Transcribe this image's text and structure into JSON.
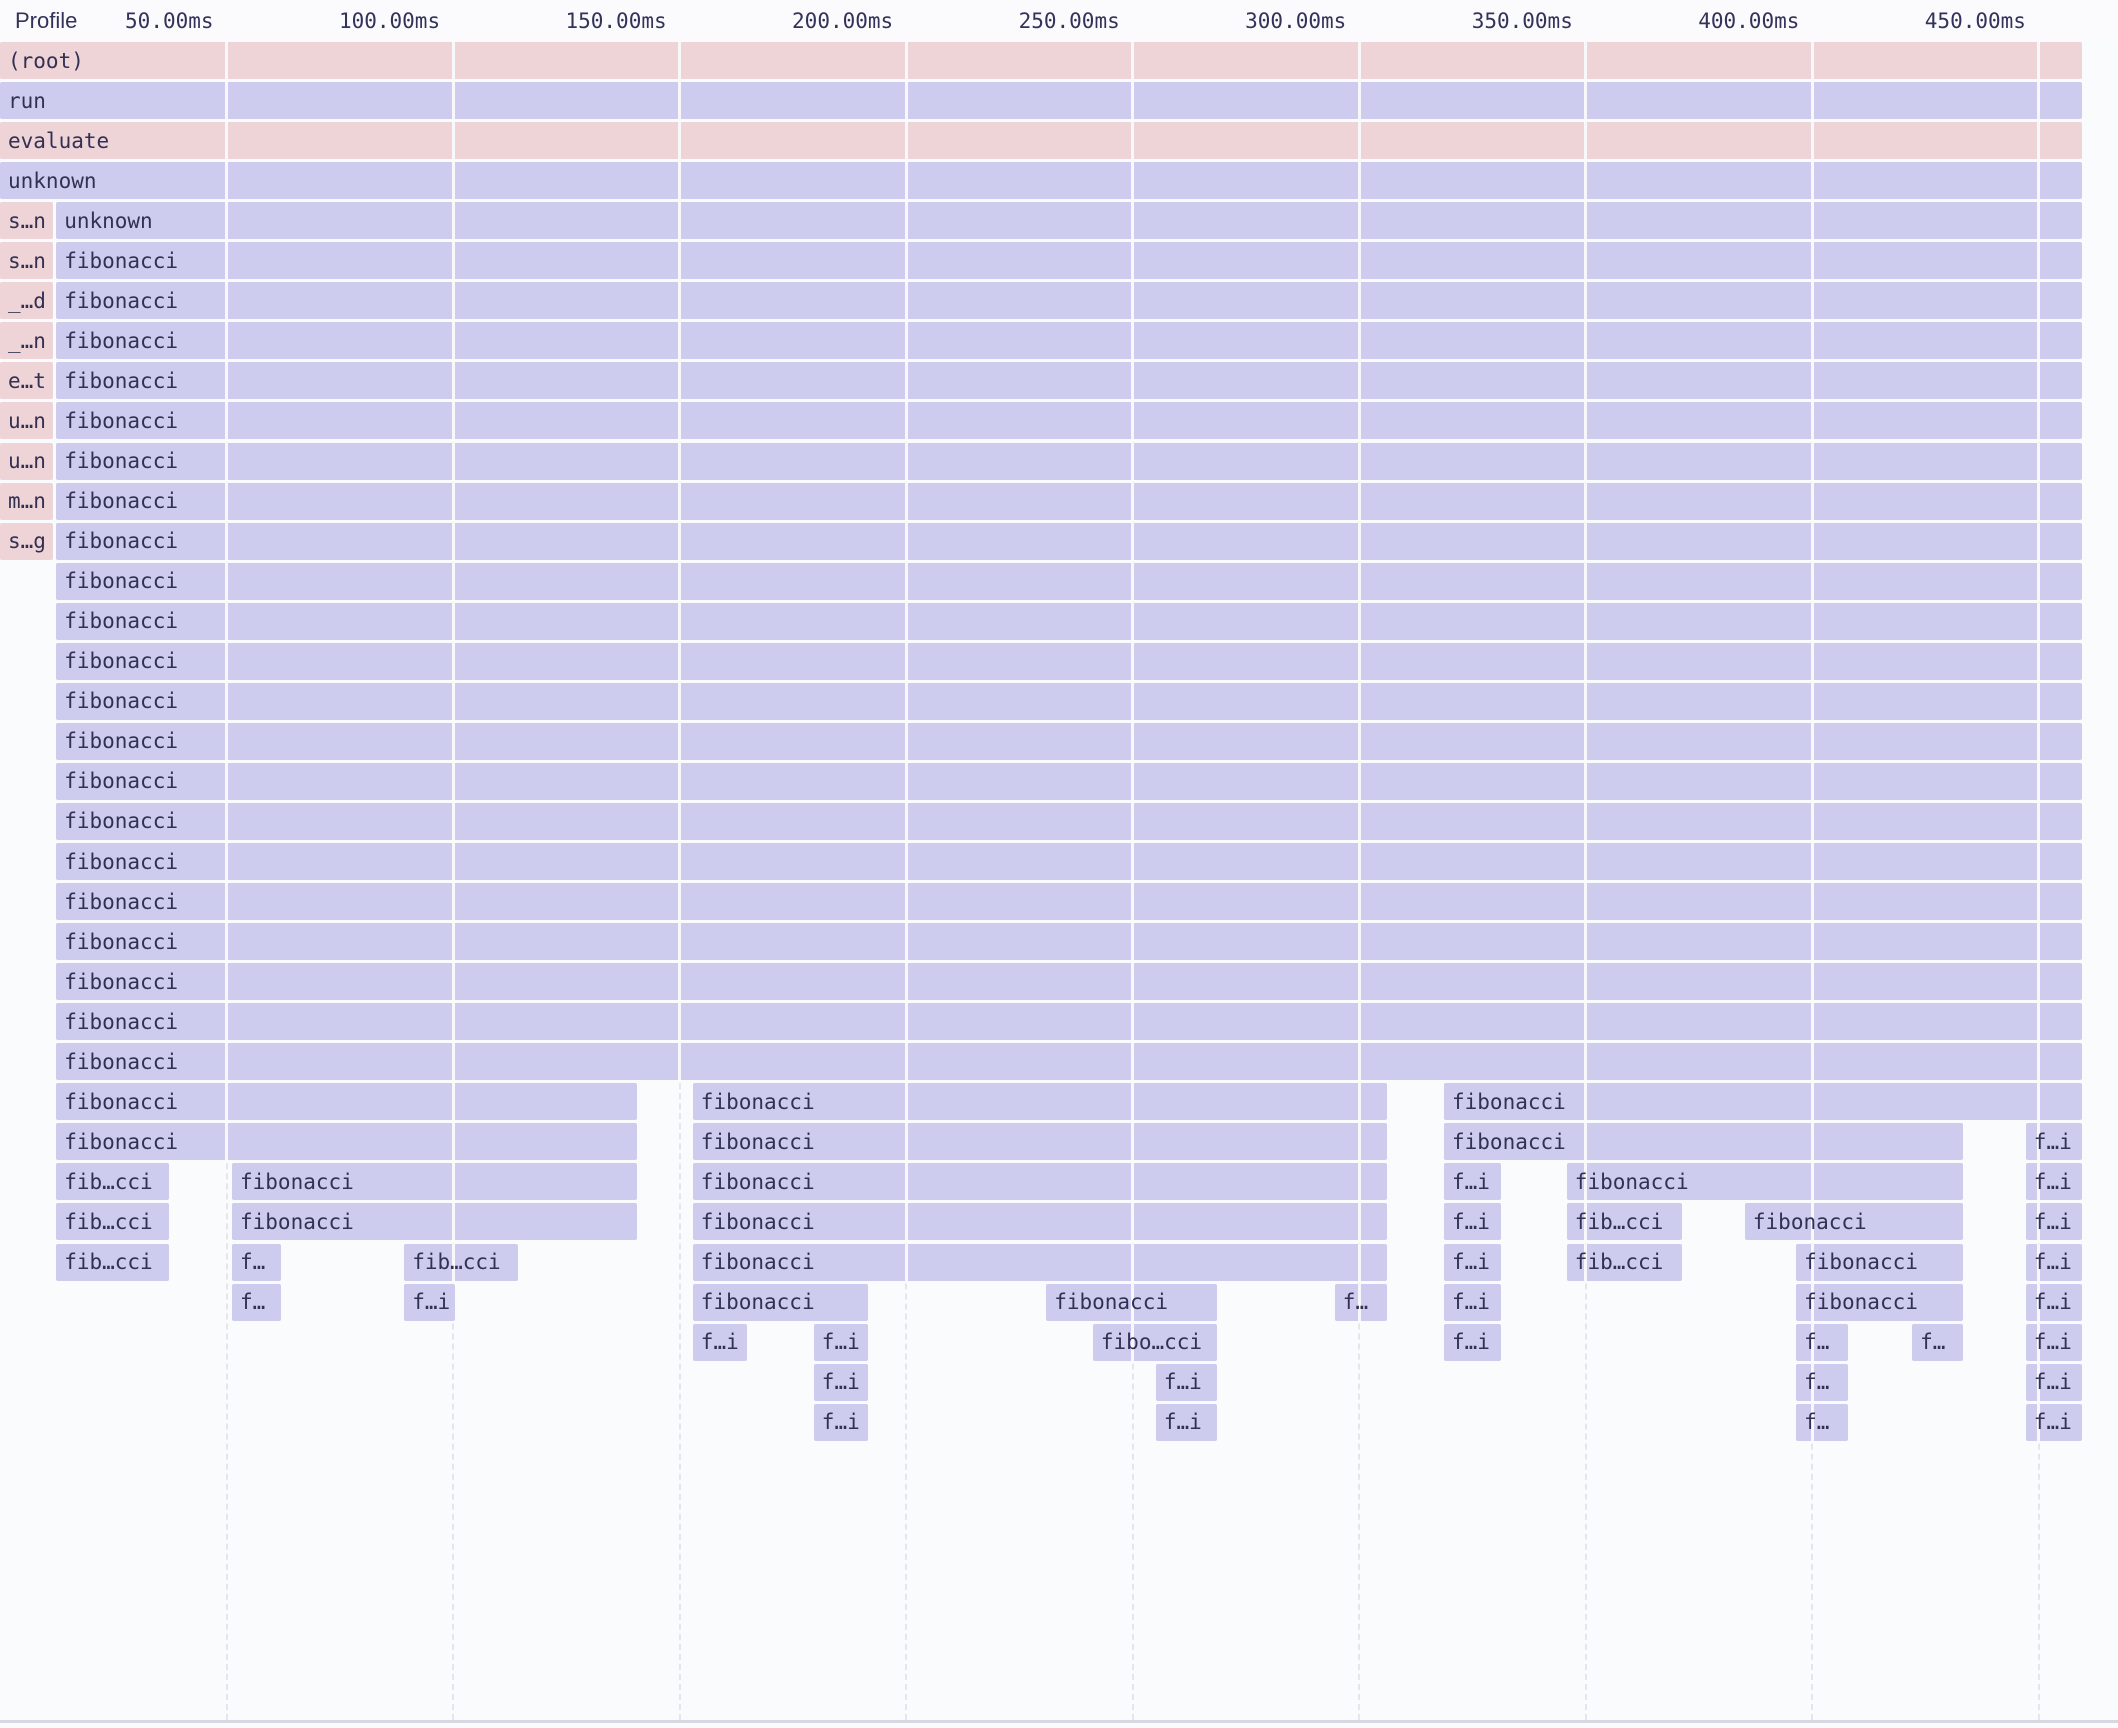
{
  "header": {
    "profile_label": "Profile",
    "axis": {
      "unit": "ms",
      "ticks": [
        {
          "ms": 50,
          "label": "50.00ms"
        },
        {
          "ms": 100,
          "label": "100.00ms"
        },
        {
          "ms": 150,
          "label": "150.00ms"
        },
        {
          "ms": 200,
          "label": "200.00ms"
        },
        {
          "ms": 250,
          "label": "250.00ms"
        },
        {
          "ms": 300,
          "label": "300.00ms"
        },
        {
          "ms": 350,
          "label": "350.00ms"
        },
        {
          "ms": 400,
          "label": "400.00ms"
        },
        {
          "ms": 450,
          "label": "450.00ms"
        }
      ]
    }
  },
  "colors": {
    "background": "#fafbfc",
    "system_frame": "#eed3d7",
    "js_frame": "#cdccee",
    "frame_text": "#323153",
    "header_text": "#33325a",
    "grid_dashed": "#e7e5ec",
    "grid_over_frame": "#f8f8fb",
    "divider": "#d9d5e1"
  },
  "flame_chart": {
    "unit": "ms",
    "total_ms": 459.5,
    "rows": [
      {
        "depth": 0,
        "blocks": [
          {
            "label": "(root)",
            "kind": "system",
            "t0": 0,
            "t1": 459.5
          }
        ]
      },
      {
        "depth": 1,
        "blocks": [
          {
            "label": "run",
            "kind": "js",
            "t0": 0,
            "t1": 459.5
          }
        ]
      },
      {
        "depth": 2,
        "blocks": [
          {
            "label": "evaluate",
            "kind": "system",
            "t0": 0,
            "t1": 459.5
          }
        ]
      },
      {
        "depth": 3,
        "blocks": [
          {
            "label": "unknown",
            "kind": "js",
            "t0": 0,
            "t1": 459.5
          }
        ]
      },
      {
        "depth": 4,
        "blocks": [
          {
            "label": "s…n",
            "kind": "system",
            "t0": 0,
            "t1": 11.7
          },
          {
            "label": "unknown",
            "kind": "js",
            "t0": 12.4,
            "t1": 459.5
          }
        ]
      },
      {
        "depth": 5,
        "blocks": [
          {
            "label": "s…n",
            "kind": "system",
            "t0": 0,
            "t1": 11.7
          },
          {
            "label": "fibonacci",
            "kind": "js",
            "t0": 12.4,
            "t1": 459.5
          }
        ]
      },
      {
        "depth": 6,
        "blocks": [
          {
            "label": "_…d",
            "kind": "system",
            "t0": 0,
            "t1": 11.7
          },
          {
            "label": "fibonacci",
            "kind": "js",
            "t0": 12.4,
            "t1": 459.5
          }
        ]
      },
      {
        "depth": 7,
        "blocks": [
          {
            "label": "_…n",
            "kind": "system",
            "t0": 0,
            "t1": 11.7
          },
          {
            "label": "fibonacci",
            "kind": "js",
            "t0": 12.4,
            "t1": 459.5
          }
        ]
      },
      {
        "depth": 8,
        "blocks": [
          {
            "label": "e…t",
            "kind": "system",
            "t0": 0,
            "t1": 11.7
          },
          {
            "label": "fibonacci",
            "kind": "js",
            "t0": 12.4,
            "t1": 459.5
          }
        ]
      },
      {
        "depth": 9,
        "blocks": [
          {
            "label": "u…n",
            "kind": "system",
            "t0": 0,
            "t1": 11.7
          },
          {
            "label": "fibonacci",
            "kind": "js",
            "t0": 12.4,
            "t1": 459.5
          }
        ]
      },
      {
        "depth": 10,
        "blocks": [
          {
            "label": "u…n",
            "kind": "system",
            "t0": 0,
            "t1": 11.7
          },
          {
            "label": "fibonacci",
            "kind": "js",
            "t0": 12.4,
            "t1": 459.5
          }
        ]
      },
      {
        "depth": 11,
        "blocks": [
          {
            "label": "m…n",
            "kind": "system",
            "t0": 0,
            "t1": 11.7
          },
          {
            "label": "fibonacci",
            "kind": "js",
            "t0": 12.4,
            "t1": 459.5
          }
        ]
      },
      {
        "depth": 12,
        "blocks": [
          {
            "label": "s…g",
            "kind": "system",
            "t0": 0,
            "t1": 11.7
          },
          {
            "label": "fibonacci",
            "kind": "js",
            "t0": 12.4,
            "t1": 459.5
          }
        ]
      },
      {
        "depth": 13,
        "blocks": [
          {
            "label": "fibonacci",
            "kind": "js",
            "t0": 12.4,
            "t1": 459.5
          }
        ]
      },
      {
        "depth": 14,
        "blocks": [
          {
            "label": "fibonacci",
            "kind": "js",
            "t0": 12.4,
            "t1": 459.5
          }
        ]
      },
      {
        "depth": 15,
        "blocks": [
          {
            "label": "fibonacci",
            "kind": "js",
            "t0": 12.4,
            "t1": 459.5
          }
        ]
      },
      {
        "depth": 16,
        "blocks": [
          {
            "label": "fibonacci",
            "kind": "js",
            "t0": 12.4,
            "t1": 459.5
          }
        ]
      },
      {
        "depth": 17,
        "blocks": [
          {
            "label": "fibonacci",
            "kind": "js",
            "t0": 12.4,
            "t1": 459.5
          }
        ]
      },
      {
        "depth": 18,
        "blocks": [
          {
            "label": "fibonacci",
            "kind": "js",
            "t0": 12.4,
            "t1": 459.5
          }
        ]
      },
      {
        "depth": 19,
        "blocks": [
          {
            "label": "fibonacci",
            "kind": "js",
            "t0": 12.4,
            "t1": 459.5
          }
        ]
      },
      {
        "depth": 20,
        "blocks": [
          {
            "label": "fibonacci",
            "kind": "js",
            "t0": 12.4,
            "t1": 459.5
          }
        ]
      },
      {
        "depth": 21,
        "blocks": [
          {
            "label": "fibonacci",
            "kind": "js",
            "t0": 12.4,
            "t1": 459.5
          }
        ]
      },
      {
        "depth": 22,
        "blocks": [
          {
            "label": "fibonacci",
            "kind": "js",
            "t0": 12.4,
            "t1": 459.5
          }
        ]
      },
      {
        "depth": 23,
        "blocks": [
          {
            "label": "fibonacci",
            "kind": "js",
            "t0": 12.4,
            "t1": 459.5
          }
        ]
      },
      {
        "depth": 24,
        "blocks": [
          {
            "label": "fibonacci",
            "kind": "js",
            "t0": 12.4,
            "t1": 459.5
          }
        ]
      },
      {
        "depth": 25,
        "blocks": [
          {
            "label": "fibonacci",
            "kind": "js",
            "t0": 12.4,
            "t1": 459.5
          }
        ]
      },
      {
        "depth": 26,
        "blocks": [
          {
            "label": "fibonacci",
            "kind": "js",
            "t0": 12.4,
            "t1": 140.6
          },
          {
            "label": "fibonacci",
            "kind": "js",
            "t0": 152.9,
            "t1": 306.1
          },
          {
            "label": "fibonacci",
            "kind": "js",
            "t0": 318.7,
            "t1": 459.5
          }
        ]
      },
      {
        "depth": 27,
        "blocks": [
          {
            "label": "fibonacci",
            "kind": "js",
            "t0": 12.4,
            "t1": 140.6
          },
          {
            "label": "fibonacci",
            "kind": "js",
            "t0": 152.9,
            "t1": 306.1
          },
          {
            "label": "fibonacci",
            "kind": "js",
            "t0": 318.7,
            "t1": 433.2
          },
          {
            "label": "f…i",
            "kind": "js",
            "t0": 447.1,
            "t1": 459.5
          }
        ]
      },
      {
        "depth": 28,
        "blocks": [
          {
            "label": "fib…cci",
            "kind": "js",
            "t0": 12.4,
            "t1": 37.3
          },
          {
            "label": "fibonacci",
            "kind": "js",
            "t0": 51.2,
            "t1": 140.6
          },
          {
            "label": "fibonacci",
            "kind": "js",
            "t0": 152.9,
            "t1": 306.1
          },
          {
            "label": "f…i",
            "kind": "js",
            "t0": 318.7,
            "t1": 331.3
          },
          {
            "label": "fibonacci",
            "kind": "js",
            "t0": 345.8,
            "t1": 433.2
          },
          {
            "label": "f…i",
            "kind": "js",
            "t0": 447.1,
            "t1": 459.5
          }
        ]
      },
      {
        "depth": 29,
        "blocks": [
          {
            "label": "fib…cci",
            "kind": "js",
            "t0": 12.4,
            "t1": 37.3
          },
          {
            "label": "fibonacci",
            "kind": "js",
            "t0": 51.2,
            "t1": 140.6
          },
          {
            "label": "fibonacci",
            "kind": "js",
            "t0": 152.9,
            "t1": 306.1
          },
          {
            "label": "f…i",
            "kind": "js",
            "t0": 318.7,
            "t1": 331.3
          },
          {
            "label": "fib…cci",
            "kind": "js",
            "t0": 345.8,
            "t1": 371.2
          },
          {
            "label": "fibonacci",
            "kind": "js",
            "t0": 385.1,
            "t1": 433.2
          },
          {
            "label": "f…i",
            "kind": "js",
            "t0": 447.1,
            "t1": 459.5
          }
        ]
      },
      {
        "depth": 30,
        "blocks": [
          {
            "label": "fib…cci",
            "kind": "js",
            "t0": 12.4,
            "t1": 37.3
          },
          {
            "label": "f…",
            "kind": "js",
            "t0": 51.2,
            "t1": 62.0
          },
          {
            "label": "fib…cci",
            "kind": "js",
            "t0": 89.2,
            "t1": 114.3
          },
          {
            "label": "fibonacci",
            "kind": "js",
            "t0": 152.9,
            "t1": 306.1
          },
          {
            "label": "f…i",
            "kind": "js",
            "t0": 318.7,
            "t1": 331.3
          },
          {
            "label": "fib…cci",
            "kind": "js",
            "t0": 345.8,
            "t1": 371.2
          },
          {
            "label": "fibonacci",
            "kind": "js",
            "t0": 396.4,
            "t1": 433.2
          },
          {
            "label": "f…i",
            "kind": "js",
            "t0": 447.1,
            "t1": 459.5
          }
        ]
      },
      {
        "depth": 31,
        "blocks": [
          {
            "label": "f…",
            "kind": "js",
            "t0": 51.2,
            "t1": 62.0
          },
          {
            "label": "f…i",
            "kind": "js",
            "t0": 89.2,
            "t1": 100.4
          },
          {
            "label": "fibonacci",
            "kind": "js",
            "t0": 152.9,
            "t1": 191.6
          },
          {
            "label": "fibonacci",
            "kind": "js",
            "t0": 230.9,
            "t1": 268.6
          },
          {
            "label": "f…",
            "kind": "js",
            "t0": 294.6,
            "t1": 306.1
          },
          {
            "label": "f…i",
            "kind": "js",
            "t0": 318.7,
            "t1": 331.3
          },
          {
            "label": "fibonacci",
            "kind": "js",
            "t0": 396.4,
            "t1": 433.2
          },
          {
            "label": "f…i",
            "kind": "js",
            "t0": 447.1,
            "t1": 459.5
          }
        ]
      },
      {
        "depth": 32,
        "blocks": [
          {
            "label": "f…i",
            "kind": "js",
            "t0": 152.9,
            "t1": 164.9
          },
          {
            "label": "f…i",
            "kind": "js",
            "t0": 179.6,
            "t1": 191.6
          },
          {
            "label": "fibo…cci",
            "kind": "js",
            "t0": 241.2,
            "t1": 268.6
          },
          {
            "label": "f…i",
            "kind": "js",
            "t0": 318.7,
            "t1": 331.3
          },
          {
            "label": "f…",
            "kind": "js",
            "t0": 396.4,
            "t1": 407.9
          },
          {
            "label": "f…",
            "kind": "js",
            "t0": 422.0,
            "t1": 433.2
          },
          {
            "label": "f…i",
            "kind": "js",
            "t0": 447.1,
            "t1": 459.5
          }
        ]
      },
      {
        "depth": 33,
        "blocks": [
          {
            "label": "f…i",
            "kind": "js",
            "t0": 179.6,
            "t1": 191.6
          },
          {
            "label": "f…i",
            "kind": "js",
            "t0": 255.1,
            "t1": 268.6
          },
          {
            "label": "f…",
            "kind": "js",
            "t0": 396.4,
            "t1": 407.9
          },
          {
            "label": "f…i",
            "kind": "js",
            "t0": 447.1,
            "t1": 459.5
          }
        ]
      },
      {
        "depth": 34,
        "blocks": [
          {
            "label": "f…i",
            "kind": "js",
            "t0": 179.6,
            "t1": 191.6
          },
          {
            "label": "f…i",
            "kind": "js",
            "t0": 255.1,
            "t1": 268.6
          },
          {
            "label": "f…",
            "kind": "js",
            "t0": 396.4,
            "t1": 407.9
          },
          {
            "label": "f…i",
            "kind": "js",
            "t0": 447.1,
            "t1": 459.5
          }
        ]
      }
    ]
  }
}
